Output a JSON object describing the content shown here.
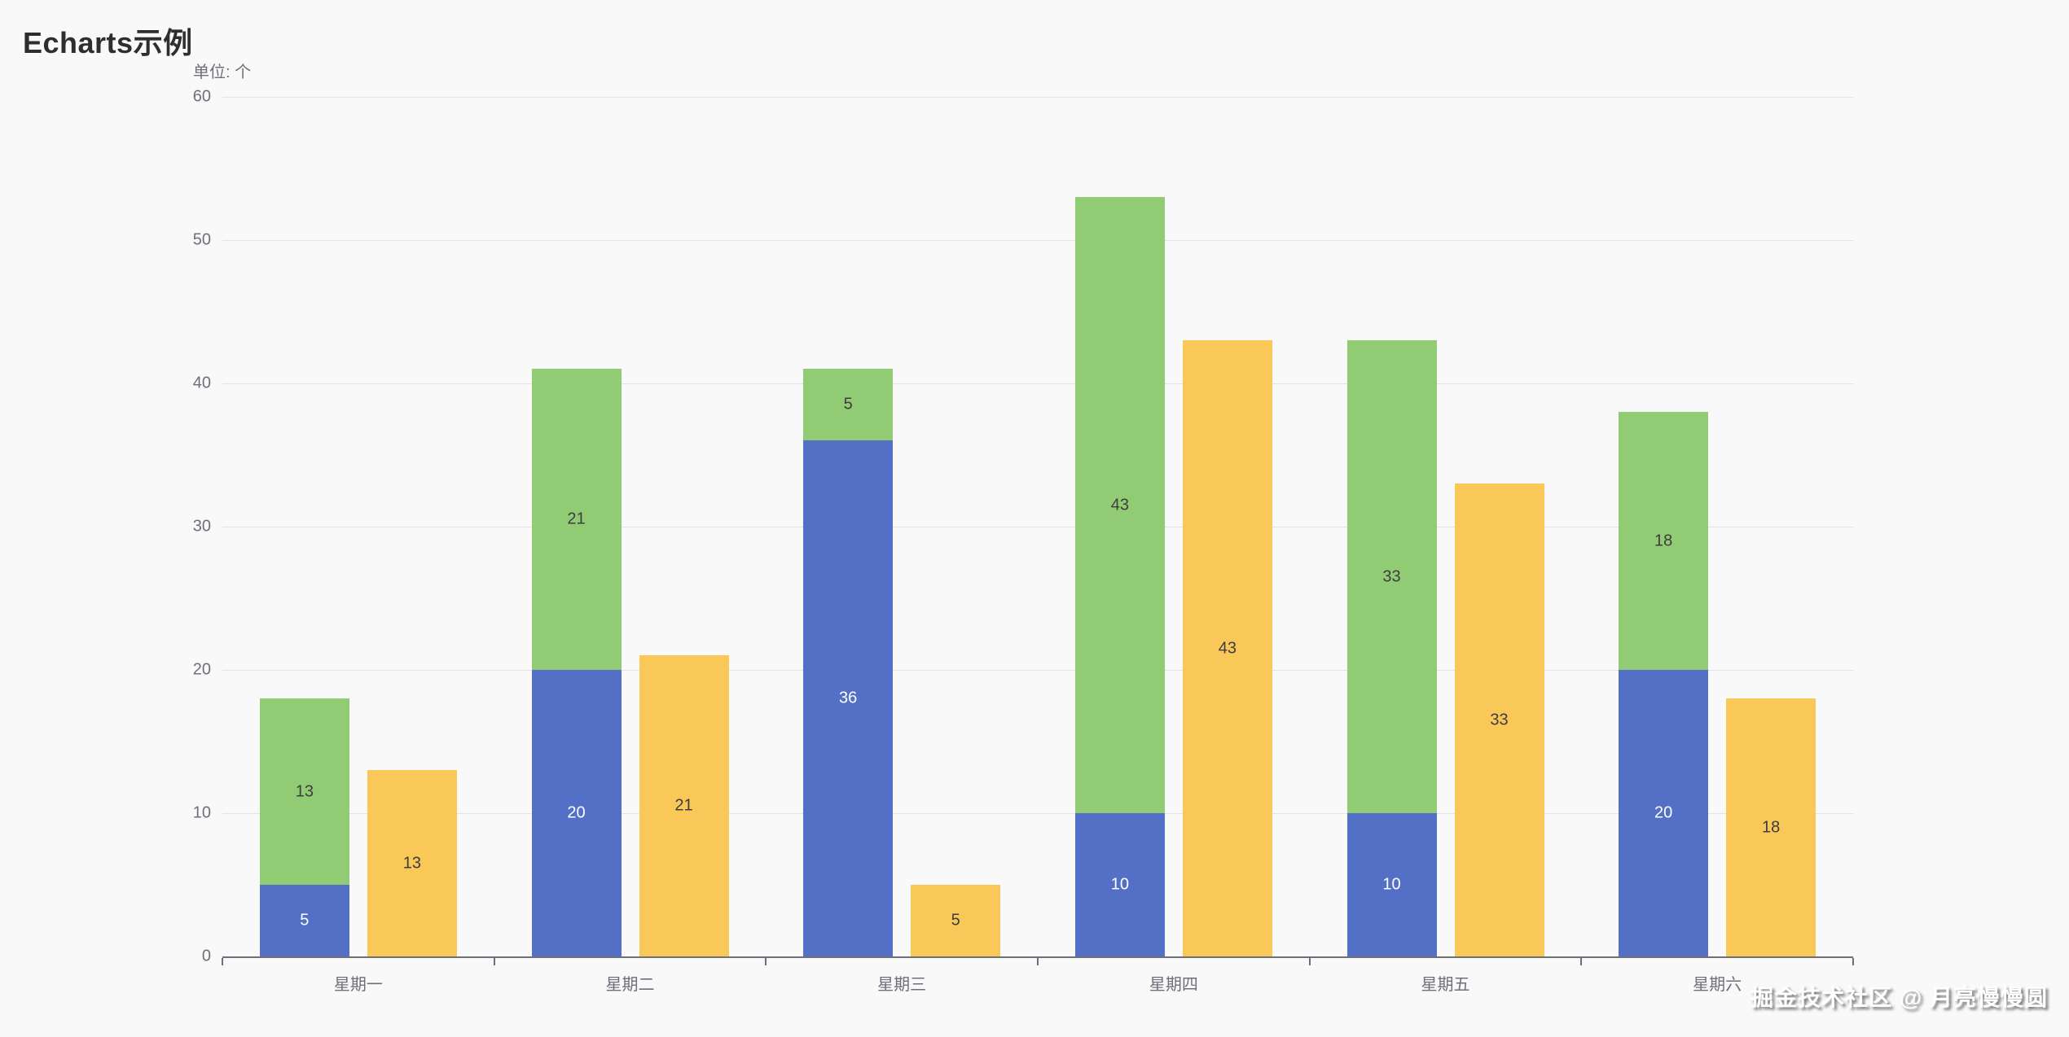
{
  "page": {
    "title": "Echarts示例",
    "watermark": "掘金技术社区 @ 月亮慢慢圆",
    "background": "#f9f9f9"
  },
  "chart_data": {
    "type": "bar",
    "title": "Echarts示例",
    "ylabel": "单位: 个",
    "xlabel": "",
    "categories": [
      "星期一",
      "星期二",
      "星期三",
      "星期四",
      "星期五",
      "星期六"
    ],
    "series": [
      {
        "name": "series-blue-stack-bottom",
        "stack": "stack1",
        "color": "#5470C6",
        "label_color": "#ffffff",
        "values": [
          5,
          20,
          36,
          10,
          10,
          20
        ]
      },
      {
        "name": "series-green-stack-top",
        "stack": "stack1",
        "color": "#91CC75",
        "label_color": "#3d3d3d",
        "values": [
          13,
          21,
          5,
          43,
          33,
          18
        ]
      },
      {
        "name": "series-yellow-standalone",
        "stack": null,
        "color": "#FAC858",
        "label_color": "#3d3d3d",
        "values": [
          13,
          21,
          5,
          43,
          33,
          18
        ]
      }
    ],
    "stack_totals": [
      18,
      41,
      41,
      53,
      43,
      38
    ],
    "ylim": [
      0,
      60
    ],
    "yticks": [
      0,
      10,
      20,
      30,
      40,
      50,
      60
    ],
    "grid": true,
    "legend": false,
    "colors": {
      "axis_text": "#6E7079",
      "axis_line": "#6E7079",
      "gridline": "#E0E3EA",
      "title_text": "#2e2e2e"
    }
  }
}
